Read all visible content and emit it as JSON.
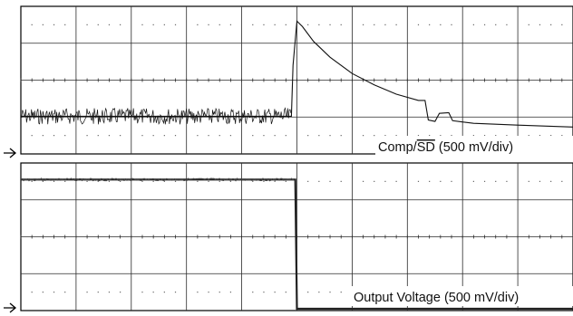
{
  "chart_data": [
    {
      "type": "line",
      "channel_label": "Comp/SD (500 mV/div)",
      "label_main": "Comp/",
      "label_overline": "SD",
      "label_tail": " (500 mV/div)",
      "x_divisions": 10,
      "y_divisions": 4,
      "x_unit": "div",
      "y_unit": "div",
      "xlim": [
        0,
        10
      ],
      "ylim": [
        0,
        4
      ],
      "series": [
        {
          "points_div": [
            [
              0,
              1.02
            ],
            [
              4.9,
              1.02
            ],
            [
              4.93,
              2.4
            ],
            [
              5.0,
              3.6
            ],
            [
              5.1,
              3.45
            ],
            [
              5.3,
              3.05
            ],
            [
              5.6,
              2.62
            ],
            [
              6.0,
              2.18
            ],
            [
              6.4,
              1.87
            ],
            [
              6.8,
              1.62
            ],
            [
              7.2,
              1.45
            ],
            [
              7.32,
              1.45
            ],
            [
              7.38,
              0.92
            ],
            [
              7.5,
              0.88
            ],
            [
              7.58,
              1.1
            ],
            [
              7.75,
              1.12
            ],
            [
              7.82,
              0.9
            ],
            [
              8.2,
              0.83
            ],
            [
              9.0,
              0.78
            ],
            [
              10.0,
              0.73
            ]
          ]
        }
      ]
    },
    {
      "type": "line",
      "channel_label": "Output Voltage (500 mV/div)",
      "x_divisions": 10,
      "y_divisions": 4,
      "xlim": [
        0,
        10
      ],
      "ylim": [
        0,
        4
      ],
      "series": [
        {
          "points_div": [
            [
              0,
              3.55
            ],
            [
              4.97,
              3.55
            ],
            [
              5.0,
              0.05
            ],
            [
              10.0,
              0.05
            ]
          ]
        }
      ]
    }
  ]
}
